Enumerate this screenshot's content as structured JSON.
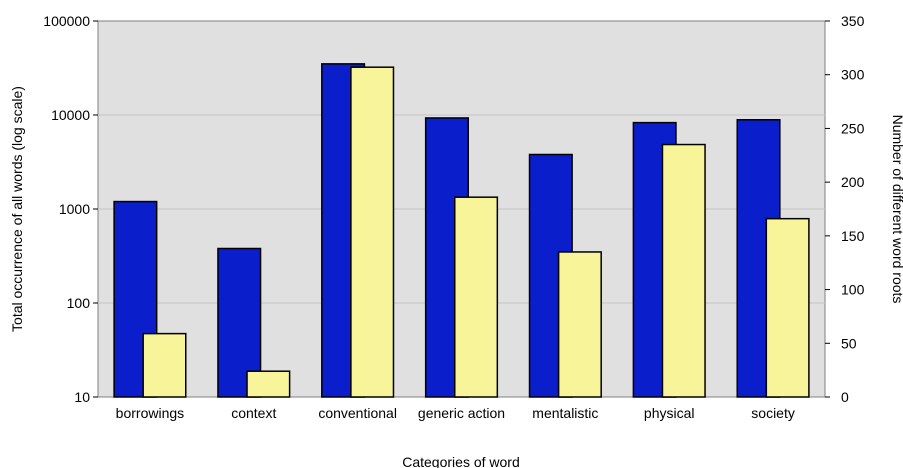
{
  "chart_data": {
    "type": "bar",
    "title": "",
    "xlabel": "Categories of word",
    "ylabel_left": "Total occurrence of all words (log scale)",
    "ylabel_right": "Number of different word roots",
    "categories": [
      "borrowings",
      "context",
      "conventional",
      "generic action",
      "mentalistic",
      "physical",
      "society"
    ],
    "left_axis": {
      "scale": "log",
      "min": 10,
      "max": 100000,
      "ticks": [
        "10",
        "100",
        "1000",
        "10000",
        "100000"
      ]
    },
    "right_axis": {
      "scale": "linear",
      "min": 0,
      "max": 350,
      "ticks": [
        "0",
        "50",
        "100",
        "150",
        "200",
        "250",
        "300",
        "350"
      ]
    },
    "series": [
      {
        "axis": "left",
        "color": "#0a1ecc",
        "values": [
          1200,
          380,
          35000,
          9300,
          3800,
          8300,
          8900
        ]
      },
      {
        "axis": "right",
        "color": "#f7f49a",
        "values": [
          59,
          24,
          307,
          186,
          135,
          235,
          166
        ]
      }
    ],
    "plot_background": "#e0e0e0",
    "grid": true,
    "legend": "none"
  }
}
